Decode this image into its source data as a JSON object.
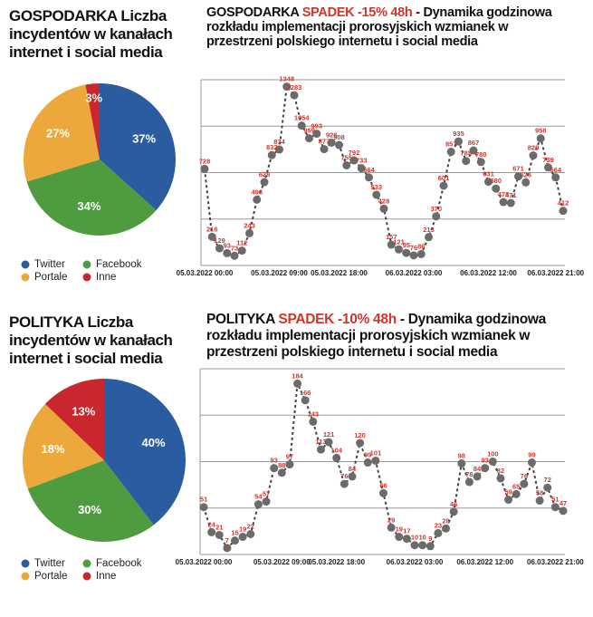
{
  "chart_data": [
    {
      "type": "pie",
      "title": "GOSPODARKA Liczba incydentów w kanałach internet i social media",
      "categories": [
        "Twitter",
        "Facebook",
        "Portale",
        "Inne"
      ],
      "values": [
        37,
        34,
        27,
        3
      ],
      "value_labels": [
        "37%",
        "34%",
        "27%",
        "3%"
      ],
      "colors": [
        "#2b5c9f",
        "#4f9b3f",
        "#eda83b",
        "#c9272d"
      ]
    },
    {
      "type": "line",
      "title": "GOSPODARKA",
      "title_highlight": "SPADEK -15% 48h",
      "title_rest": "- Dynamika godzinowa rozkładu implementacji prorosyjskich wzmianek w przestrzeni polskiego internetu i social media",
      "categories": [
        "05.03.2022 00:00",
        null,
        null,
        null,
        null,
        null,
        null,
        null,
        null,
        null,
        "05.03.2022 09:00",
        null,
        null,
        null,
        null,
        null,
        null,
        null,
        "05.03.2022 18:00",
        null,
        null,
        null,
        null,
        null,
        null,
        null,
        null,
        null,
        "06.03.2022 03:00",
        null,
        null,
        null,
        null,
        null,
        null,
        null,
        null,
        null,
        "06.03.2022 12:00",
        null,
        null,
        null,
        null,
        null,
        null,
        null,
        null,
        "06.03.2022 21:00",
        null
      ],
      "values": [
        728,
        216,
        129,
        93,
        73,
        112,
        243,
        496,
        628,
        832,
        874,
        1348,
        1283,
        1054,
        959,
        993,
        877,
        926,
        908,
        755,
        792,
        733,
        664,
        533,
        428,
        157,
        121,
        95,
        76,
        86,
        213,
        370,
        601,
        857,
        935,
        788,
        867,
        780,
        631,
        580,
        478,
        471,
        671,
        626,
        829,
        958,
        739,
        664,
        412
      ],
      "ylim": [
        0,
        1400
      ],
      "yticks": [
        0,
        350,
        700,
        1050,
        1400
      ],
      "grid": true,
      "line_color": "#444444",
      "point_color": "#6b6b6b",
      "label_color": "#d3342c"
    },
    {
      "type": "pie",
      "title": "POLITYKA Liczba incydentów w kanałach internet i social media",
      "categories": [
        "Twitter",
        "Facebook",
        "Portale",
        "Inne"
      ],
      "values": [
        40,
        30,
        18,
        13
      ],
      "value_labels": [
        "40%",
        "30%",
        "18%",
        "13%"
      ],
      "colors": [
        "#2b5c9f",
        "#4f9b3f",
        "#eda83b",
        "#c9272d"
      ]
    },
    {
      "type": "line",
      "title": "POLITYKA",
      "title_highlight": "SPADEK -10% 48h",
      "title_rest": "- Dynamika godzinowa rozkładu implementacji prorosyjskich wzmianek w przestrzeni polskiego internetu i social media",
      "categories": [
        "05.03.2022 00:00",
        null,
        null,
        null,
        null,
        null,
        null,
        null,
        null,
        null,
        "05.03.2022 09:00",
        null,
        null,
        null,
        null,
        null,
        null,
        "05.03.2022 18:00",
        null,
        null,
        null,
        null,
        null,
        null,
        null,
        null,
        null,
        "06.03.2022 03:00",
        null,
        null,
        null,
        null,
        null,
        null,
        null,
        null,
        "06.03.2022 12:00",
        null,
        null,
        null,
        null,
        null,
        null,
        null,
        null,
        "06.03.2022 21:00",
        null
      ],
      "values": [
        51,
        24,
        21,
        7,
        15,
        19,
        22,
        54,
        57,
        93,
        88,
        97,
        184,
        166,
        143,
        113,
        121,
        104,
        76,
        84,
        120,
        99,
        101,
        66,
        29,
        19,
        17,
        10,
        10,
        9,
        23,
        28,
        46,
        98,
        78,
        84,
        93,
        100,
        82,
        59,
        65,
        76,
        99,
        58,
        72,
        51,
        47
      ],
      "ylim": [
        0,
        200
      ],
      "yticks": [
        0,
        50,
        100,
        150,
        200
      ],
      "grid": true,
      "line_color": "#444444",
      "point_color": "#6b6b6b",
      "label_color": "#d3342c"
    }
  ]
}
